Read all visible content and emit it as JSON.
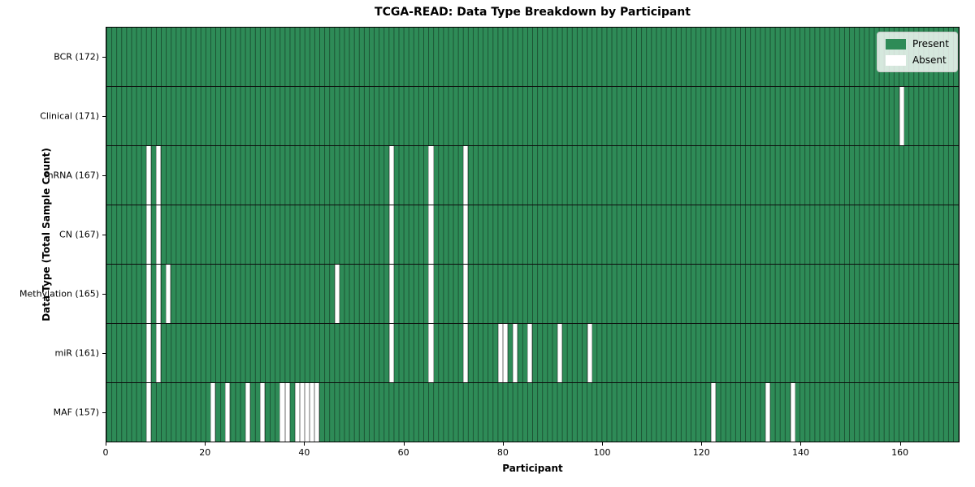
{
  "chart_data": {
    "type": "heatmap",
    "title": "TCGA-READ: Data Type Breakdown by Participant",
    "xlabel": "Participant",
    "ylabel": "Data Type (Total Sample Count)",
    "n_participants": 172,
    "x_ticks": [
      0,
      20,
      40,
      60,
      80,
      100,
      120,
      140,
      160
    ],
    "legend": {
      "present_label": "Present",
      "absent_label": "Absent"
    },
    "colors": {
      "present": "#2e8b57",
      "absent": "#ffffff",
      "grid_line": "rgba(0,0,0,0.42)",
      "row_divider": "#0d0d0d",
      "plot_border": "#000000",
      "legend_border": "#c9c9c9"
    },
    "rows": [
      {
        "name": "BCR",
        "label": "BCR (172)",
        "total": 172,
        "absent": []
      },
      {
        "name": "Clinical",
        "label": "Clinical (171)",
        "total": 171,
        "absent": [
          160
        ]
      },
      {
        "name": "mRNA",
        "label": "mRNA (167)",
        "total": 167,
        "absent": [
          8,
          10,
          57,
          65,
          72
        ]
      },
      {
        "name": "CN",
        "label": "CN (167)",
        "total": 167,
        "absent": [
          8,
          10,
          57,
          65,
          72
        ]
      },
      {
        "name": "Methylation",
        "label": "Methylation (165)",
        "total": 165,
        "absent": [
          8,
          10,
          12,
          46,
          57,
          65,
          72
        ]
      },
      {
        "name": "miR",
        "label": "miR (161)",
        "total": 161,
        "absent": [
          8,
          10,
          57,
          65,
          72,
          79,
          80,
          82,
          85,
          91,
          97
        ]
      },
      {
        "name": "MAF",
        "label": "MAF (157)",
        "total": 157,
        "absent": [
          8,
          21,
          24,
          28,
          31,
          35,
          36,
          38,
          39,
          40,
          41,
          42,
          122,
          133,
          138
        ]
      }
    ]
  }
}
